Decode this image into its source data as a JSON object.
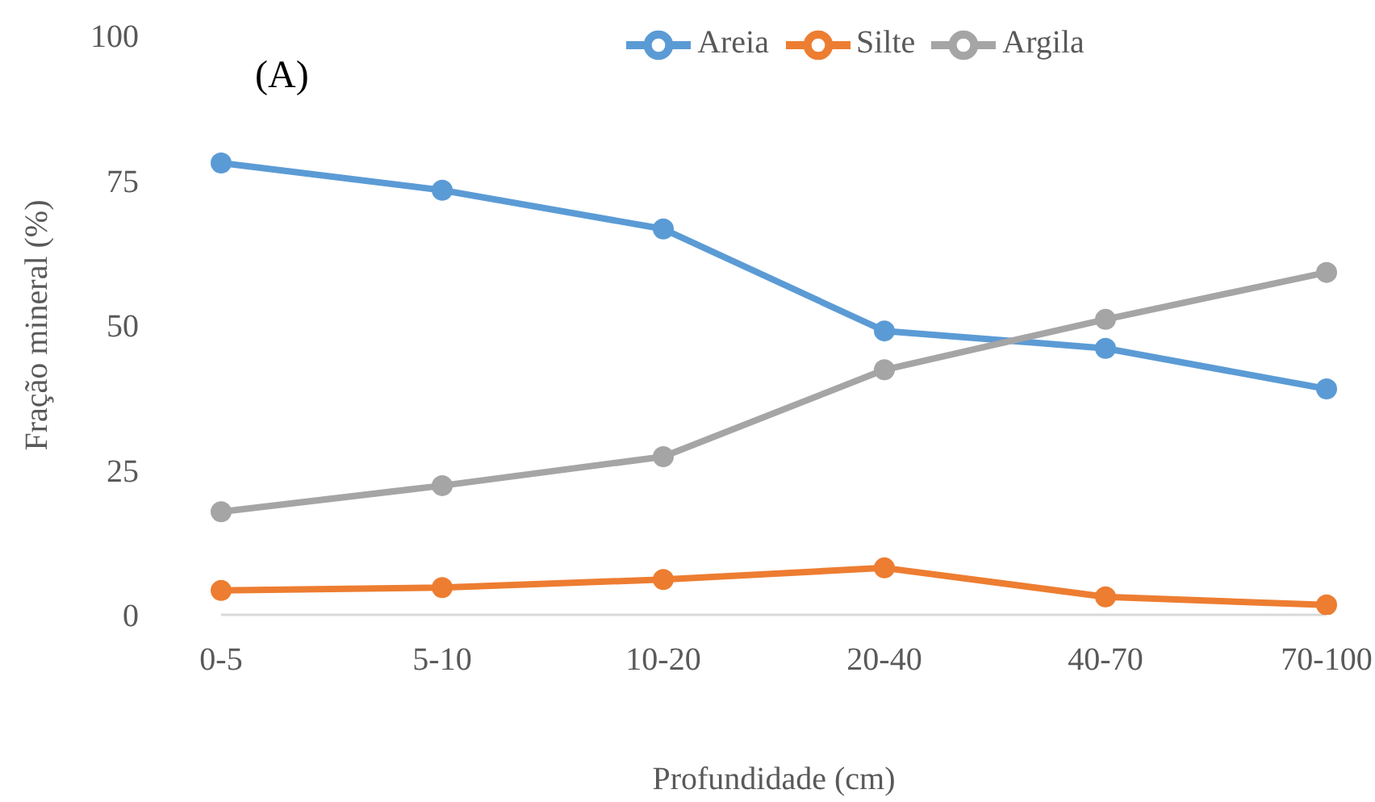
{
  "chart_data": {
    "type": "line",
    "xlabel": "Profundidade (cm)",
    "ylabel": "Fração mineral (%)",
    "annotations": [
      "(A)"
    ],
    "categories": [
      "0-5",
      "5-10",
      "10-20",
      "20-40",
      "40-70",
      "70-100"
    ],
    "series": [
      {
        "name": "Areia",
        "color": "#5b9bd5",
        "values": [
          78,
          73.3,
          66.6,
          49,
          46,
          39
        ]
      },
      {
        "name": "Silte",
        "color": "#ed7d31",
        "values": [
          4.2,
          4.7,
          6.1,
          8.1,
          3.1,
          1.7
        ]
      },
      {
        "name": "Argila",
        "color": "#a5a5a5",
        "values": [
          17.8,
          22.3,
          27.3,
          42.3,
          51,
          59.1
        ]
      }
    ],
    "ylim": [
      0,
      100
    ],
    "yticks": [
      0,
      25,
      50,
      75,
      100
    ],
    "grid": false,
    "legend": "top",
    "marker": "circle",
    "line_style": "solid"
  }
}
